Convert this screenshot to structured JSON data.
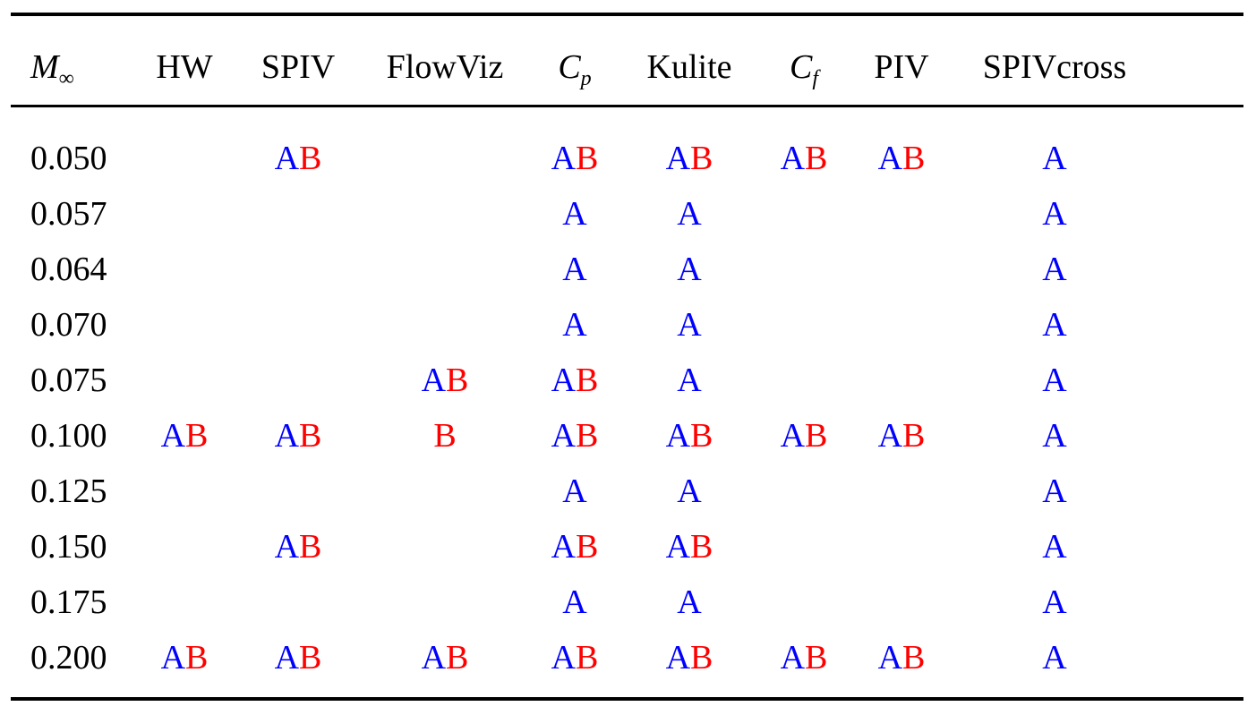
{
  "table": {
    "colors": {
      "A": "#0000ff",
      "B": "#ff0000"
    },
    "headers": [
      {
        "key": "mach",
        "main": "M",
        "sub": "∞",
        "math": true
      },
      {
        "key": "HW",
        "main": "HW"
      },
      {
        "key": "SPIV",
        "main": "SPIV"
      },
      {
        "key": "FlowViz",
        "main": "FlowViz"
      },
      {
        "key": "Cp",
        "main": "C",
        "sub": "p",
        "math": true
      },
      {
        "key": "Kulite",
        "main": "Kulite"
      },
      {
        "key": "Cf",
        "main": "C",
        "sub": "f",
        "math": true
      },
      {
        "key": "PIV",
        "main": "PIV"
      },
      {
        "key": "SPIVcross",
        "main": "SPIVcross"
      }
    ],
    "rows": [
      {
        "mach": "0.050",
        "HW": "",
        "SPIV": "AB",
        "FlowViz": "",
        "Cp": "AB",
        "Kulite": "AB",
        "Cf": "AB",
        "PIV": "AB",
        "SPIVcross": "A"
      },
      {
        "mach": "0.057",
        "HW": "",
        "SPIV": "",
        "FlowViz": "",
        "Cp": "A",
        "Kulite": "A",
        "Cf": "",
        "PIV": "",
        "SPIVcross": "A"
      },
      {
        "mach": "0.064",
        "HW": "",
        "SPIV": "",
        "FlowViz": "",
        "Cp": "A",
        "Kulite": "A",
        "Cf": "",
        "PIV": "",
        "SPIVcross": "A"
      },
      {
        "mach": "0.070",
        "HW": "",
        "SPIV": "",
        "FlowViz": "",
        "Cp": "A",
        "Kulite": "A",
        "Cf": "",
        "PIV": "",
        "SPIVcross": "A"
      },
      {
        "mach": "0.075",
        "HW": "",
        "SPIV": "",
        "FlowViz": "AB",
        "Cp": "AB",
        "Kulite": "A",
        "Cf": "",
        "PIV": "",
        "SPIVcross": "A"
      },
      {
        "mach": "0.100",
        "HW": "AB",
        "SPIV": "AB",
        "FlowViz": "B",
        "Cp": "AB",
        "Kulite": "AB",
        "Cf": "AB",
        "PIV": "AB",
        "SPIVcross": "A"
      },
      {
        "mach": "0.125",
        "HW": "",
        "SPIV": "",
        "FlowViz": "",
        "Cp": "A",
        "Kulite": "A",
        "Cf": "",
        "PIV": "",
        "SPIVcross": "A"
      },
      {
        "mach": "0.150",
        "HW": "",
        "SPIV": "AB",
        "FlowViz": "",
        "Cp": "AB",
        "Kulite": "AB",
        "Cf": "",
        "PIV": "",
        "SPIVcross": "A"
      },
      {
        "mach": "0.175",
        "HW": "",
        "SPIV": "",
        "FlowViz": "",
        "Cp": "A",
        "Kulite": "A",
        "Cf": "",
        "PIV": "",
        "SPIVcross": "A"
      },
      {
        "mach": "0.200",
        "HW": "AB",
        "SPIV": "AB",
        "FlowViz": "AB",
        "Cp": "AB",
        "Kulite": "AB",
        "Cf": "AB",
        "PIV": "AB",
        "SPIVcross": "A"
      }
    ]
  }
}
